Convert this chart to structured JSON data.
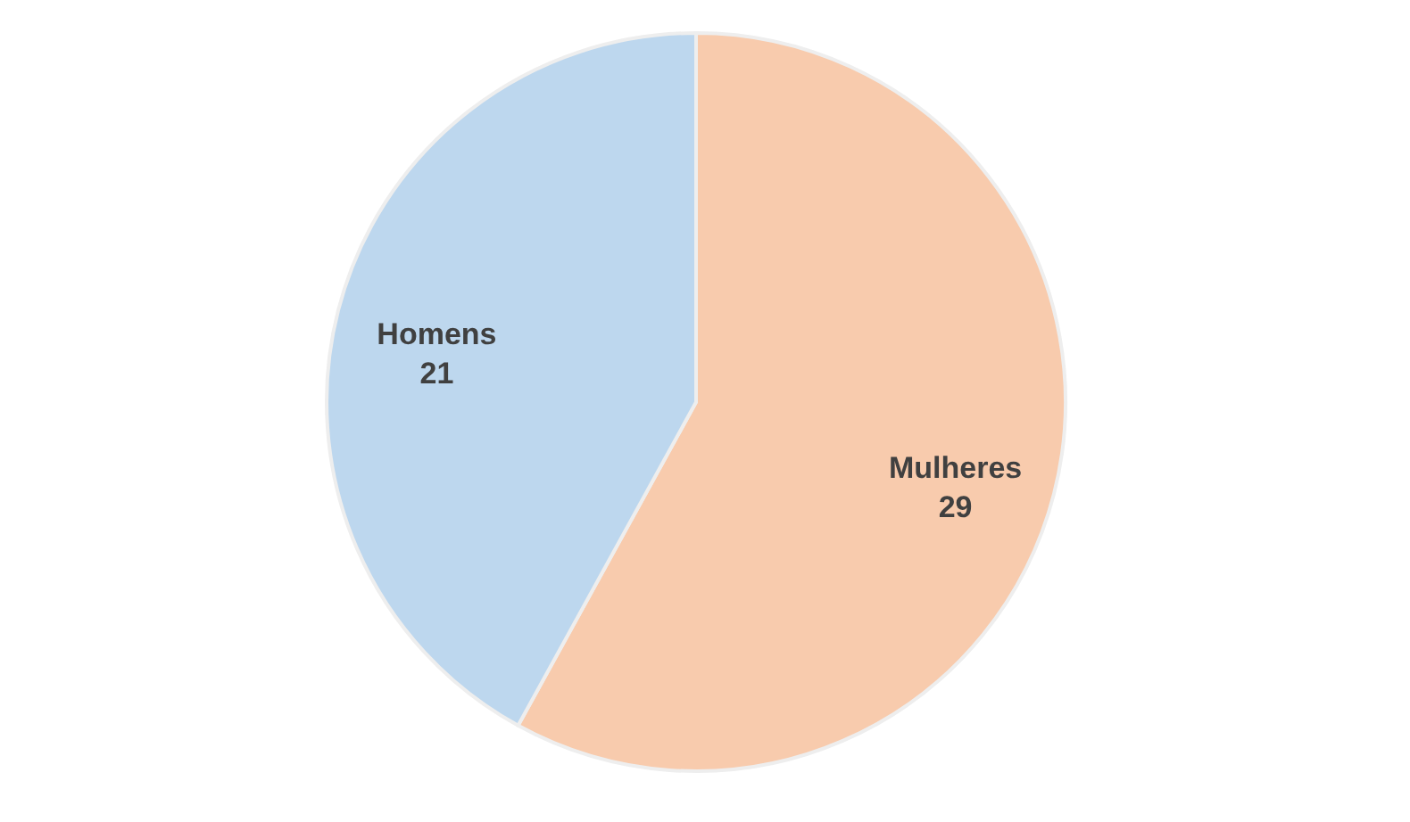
{
  "chart_data": {
    "type": "pie",
    "categories": [
      "Mulheres",
      "Homens"
    ],
    "values": [
      29,
      21
    ],
    "colors": [
      "#f8cbad",
      "#bdd7ee"
    ],
    "data_labels": true,
    "legend": false
  }
}
